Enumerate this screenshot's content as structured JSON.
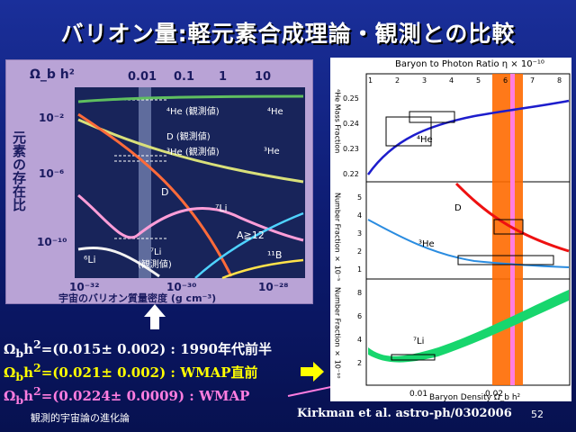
{
  "title": "バリオン量:軽元素合成理論・観測との比較",
  "left_plot": {
    "top_axis_label": "Ω_b h²",
    "top_ticks": [
      "0.01",
      "0.1",
      "1",
      "10"
    ],
    "y_axis_label": "元素の存在比",
    "y_ticks": [
      "10⁻²",
      "10⁻⁶",
      "10⁻¹⁰"
    ],
    "x_ticks": [
      "10⁻³²",
      "10⁻³⁰",
      "10⁻²⁸"
    ],
    "x_axis_label": "宇宙のバリオン質量密度 (g cm⁻³)",
    "labels": {
      "he4_obs": "⁴He (観測値)",
      "he4": "⁴He",
      "d_obs": "D (観測値)",
      "he3_obs": "³He (観測値)",
      "he3": "³He",
      "d": "D",
      "li7": "⁷Li",
      "a12": "A≧12",
      "li6": "⁶Li",
      "li7_obs_line1": "⁷Li",
      "li7_obs_line2": "(観測値)",
      "b11": "¹¹B"
    }
  },
  "right_plot": {
    "top_axis_label": "Baryon to Photon Ratio η × 10⁻¹⁰",
    "top_ticks": [
      "1",
      "2",
      "3",
      "4",
      "5",
      "6",
      "7",
      "8"
    ],
    "x_axis_label": "Baryon Density Ω_b h²",
    "x_ticks": [
      "0.01",
      "0.02"
    ],
    "panels": [
      {
        "ylabel": "⁴He Mass Fraction",
        "yticks": [
          "0.22",
          "0.23",
          "0.24",
          "0.25"
        ],
        "label": "⁴He"
      },
      {
        "ylabel": "Number Fraction × 10⁻⁵",
        "yticks": [
          "1",
          "2",
          "3",
          "4",
          "5"
        ],
        "labels": [
          "D",
          "³He"
        ]
      },
      {
        "ylabel": "Number Fraction × 10⁻¹⁰",
        "yticks": [
          "2",
          "4",
          "6",
          "8"
        ],
        "label": "⁷Li"
      }
    ]
  },
  "results": [
    {
      "prefix": "Ω",
      "sub": "b",
      "mid": "h",
      "sup": "2",
      "value": "=(0.015± 0.002) : 1990年代前半"
    },
    {
      "prefix": "Ω",
      "sub": "b",
      "mid": "h",
      "sup": "2",
      "value": "=(0.021± 0.002)   : WMAP直前"
    },
    {
      "prefix": "Ω",
      "sub": "b",
      "mid": "h",
      "sup": "2",
      "value": "=(0.0224± 0.0009)   : WMAP"
    }
  ],
  "footer": {
    "left": "観測的宇宙論の進化論",
    "citation": "Kirkman et al. astro-ph/0302006",
    "page": "52"
  },
  "colors": {
    "result1": "#ffffff",
    "result2": "#ffff00",
    "result3": "#ff7de0",
    "orange_band": "#ff6a00",
    "pink_band": "#ff7de0"
  }
}
